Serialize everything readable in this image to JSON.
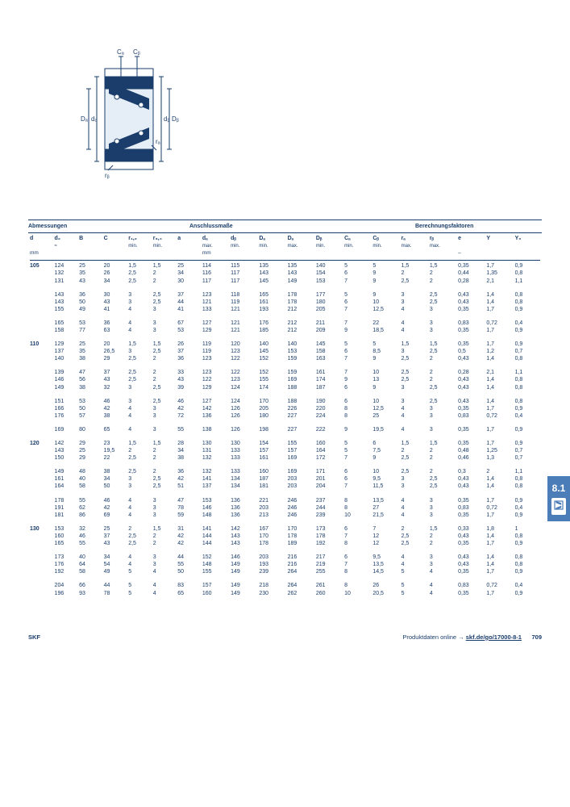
{
  "section_headers": {
    "abm": "Abmessungen",
    "ans": "Anschlussmaße",
    "ber": "Berechnungsfaktoren"
  },
  "col_headers": [
    "d",
    "d₂\n≈",
    "B",
    "C",
    "r₁,₂\nmin.",
    "r₃,₄\nmin.",
    "a",
    "dₐ\nmax.",
    "dᵦ\nmin.",
    "Dₐ\nmin.",
    "Dₐ\nmax.",
    "Dᵦ\nmin.",
    "Cₐ\nmin.",
    "Cᵦ\nmin.",
    "rₐ\nmax.",
    "rᵦ\nmax.",
    "e",
    "Y",
    "Y₀"
  ],
  "units": {
    "mm1": "mm",
    "mm2": "mm",
    "dash": "–"
  },
  "side_tab": "8.1",
  "footer": {
    "brand": "SKF",
    "link_label": "Produktdaten online → ",
    "link": "skf.de/go/17000-8-1",
    "page": "709"
  },
  "diagram": {
    "width": 130,
    "height": 170,
    "labels": {
      "Ca": "Cₐ",
      "Cb": "Cᵦ",
      "Da": "Dₐ",
      "da": "dₐ",
      "Db": "Dᵦ",
      "db": "dᵦ",
      "ra": "rₐ",
      "rb": "rᵦ"
    },
    "stroke": "#1a3d6b",
    "fill_dark": "#1a3d6b",
    "fill_light": "#a8c4e0"
  },
  "rows": [
    {
      "d": "105",
      "cells": [
        [
          "124",
          "25",
          "20",
          "1,5",
          "1,5",
          "25",
          "114",
          "115",
          "135",
          "135",
          "140",
          "5",
          "5",
          "1,5",
          "1,5",
          "0,35",
          "1,7",
          "0,9"
        ],
        [
          "132",
          "35",
          "26",
          "2,5",
          "2",
          "34",
          "116",
          "117",
          "143",
          "143",
          "154",
          "6",
          "9",
          "2",
          "2",
          "0,44",
          "1,35",
          "0,8"
        ],
        [
          "131",
          "43",
          "34",
          "2,5",
          "2",
          "30",
          "117",
          "117",
          "145",
          "149",
          "153",
          "7",
          "9",
          "2,5",
          "2",
          "0,28",
          "2,1",
          "1,1"
        ]
      ]
    },
    {
      "cells": [
        [
          "143",
          "36",
          "30",
          "3",
          "2,5",
          "37",
          "123",
          "118",
          "165",
          "178",
          "177",
          "5",
          "9",
          "3",
          "2,5",
          "0,43",
          "1,4",
          "0,8"
        ],
        [
          "143",
          "50",
          "43",
          "3",
          "2,5",
          "44",
          "121",
          "119",
          "161",
          "178",
          "180",
          "6",
          "10",
          "3",
          "2,5",
          "0,43",
          "1,4",
          "0,8"
        ],
        [
          "155",
          "49",
          "41",
          "4",
          "3",
          "41",
          "133",
          "121",
          "193",
          "212",
          "205",
          "7",
          "12,5",
          "4",
          "3",
          "0,35",
          "1,7",
          "0,9"
        ]
      ]
    },
    {
      "cells": [
        [
          "165",
          "53",
          "36",
          "4",
          "3",
          "67",
          "127",
          "121",
          "176",
          "212",
          "211",
          "7",
          "22",
          "4",
          "3",
          "0,83",
          "0,72",
          "0,4"
        ],
        [
          "158",
          "77",
          "63",
          "4",
          "3",
          "53",
          "129",
          "121",
          "185",
          "212",
          "209",
          "9",
          "18,5",
          "4",
          "3",
          "0,35",
          "1,7",
          "0,9"
        ]
      ]
    },
    {
      "d": "110",
      "cells": [
        [
          "129",
          "25",
          "20",
          "1,5",
          "1,5",
          "26",
          "119",
          "120",
          "140",
          "140",
          "145",
          "5",
          "5",
          "1,5",
          "1,5",
          "0,35",
          "1,7",
          "0,9"
        ],
        [
          "137",
          "35",
          "26,5",
          "3",
          "2,5",
          "37",
          "119",
          "123",
          "145",
          "153",
          "158",
          "6",
          "8,5",
          "3",
          "2,5",
          "0,5",
          "1,2",
          "0,7"
        ],
        [
          "140",
          "38",
          "29",
          "2,5",
          "2",
          "36",
          "123",
          "122",
          "152",
          "159",
          "163",
          "7",
          "9",
          "2,5",
          "2",
          "0,43",
          "1,4",
          "0,8"
        ]
      ]
    },
    {
      "cells": [
        [
          "139",
          "47",
          "37",
          "2,5",
          "2",
          "33",
          "123",
          "122",
          "152",
          "159",
          "161",
          "7",
          "10",
          "2,5",
          "2",
          "0,28",
          "2,1",
          "1,1"
        ],
        [
          "146",
          "56",
          "43",
          "2,5",
          "2",
          "43",
          "122",
          "123",
          "155",
          "169",
          "174",
          "9",
          "13",
          "2,5",
          "2",
          "0,43",
          "1,4",
          "0,8"
        ],
        [
          "149",
          "38",
          "32",
          "3",
          "2,5",
          "39",
          "129",
          "124",
          "174",
          "188",
          "187",
          "6",
          "9",
          "3",
          "2,5",
          "0,43",
          "1,4",
          "0,8"
        ]
      ]
    },
    {
      "cells": [
        [
          "151",
          "53",
          "46",
          "3",
          "2,5",
          "46",
          "127",
          "124",
          "170",
          "188",
          "190",
          "6",
          "10",
          "3",
          "2,5",
          "0,43",
          "1,4",
          "0,8"
        ],
        [
          "166",
          "50",
          "42",
          "4",
          "3",
          "42",
          "142",
          "126",
          "205",
          "226",
          "220",
          "8",
          "12,5",
          "4",
          "3",
          "0,35",
          "1,7",
          "0,9"
        ],
        [
          "176",
          "57",
          "38",
          "4",
          "3",
          "72",
          "136",
          "126",
          "180",
          "227",
          "224",
          "8",
          "25",
          "4",
          "3",
          "0,83",
          "0,72",
          "0,4"
        ]
      ]
    },
    {
      "cells": [
        [
          "169",
          "80",
          "65",
          "4",
          "3",
          "55",
          "138",
          "126",
          "198",
          "227",
          "222",
          "9",
          "19,5",
          "4",
          "3",
          "0,35",
          "1,7",
          "0,9"
        ]
      ]
    },
    {
      "d": "120",
      "cells": [
        [
          "142",
          "29",
          "23",
          "1,5",
          "1,5",
          "28",
          "130",
          "130",
          "154",
          "155",
          "160",
          "5",
          "6",
          "1,5",
          "1,5",
          "0,35",
          "1,7",
          "0,9"
        ],
        [
          "143",
          "25",
          "19,5",
          "2",
          "2",
          "34",
          "131",
          "133",
          "157",
          "157",
          "164",
          "5",
          "7,5",
          "2",
          "2",
          "0,48",
          "1,25",
          "0,7"
        ],
        [
          "150",
          "29",
          "22",
          "2,5",
          "2",
          "38",
          "132",
          "133",
          "161",
          "169",
          "172",
          "7",
          "9",
          "2,5",
          "2",
          "0,46",
          "1,3",
          "0,7"
        ]
      ]
    },
    {
      "cells": [
        [
          "149",
          "48",
          "38",
          "2,5",
          "2",
          "36",
          "132",
          "133",
          "160",
          "169",
          "171",
          "6",
          "10",
          "2,5",
          "2",
          "0,3",
          "2",
          "1,1"
        ],
        [
          "161",
          "40",
          "34",
          "3",
          "2,5",
          "42",
          "141",
          "134",
          "187",
          "203",
          "201",
          "6",
          "9,5",
          "3",
          "2,5",
          "0,43",
          "1,4",
          "0,8"
        ],
        [
          "164",
          "58",
          "50",
          "3",
          "2,5",
          "51",
          "137",
          "134",
          "181",
          "203",
          "204",
          "7",
          "11,5",
          "3",
          "2,5",
          "0,43",
          "1,4",
          "0,8"
        ]
      ]
    },
    {
      "cells": [
        [
          "178",
          "55",
          "46",
          "4",
          "3",
          "47",
          "153",
          "136",
          "221",
          "246",
          "237",
          "8",
          "13,5",
          "4",
          "3",
          "0,35",
          "1,7",
          "0,9"
        ],
        [
          "191",
          "62",
          "42",
          "4",
          "3",
          "78",
          "146",
          "136",
          "203",
          "246",
          "244",
          "8",
          "27",
          "4",
          "3",
          "0,83",
          "0,72",
          "0,4"
        ],
        [
          "181",
          "86",
          "69",
          "4",
          "3",
          "59",
          "148",
          "136",
          "213",
          "246",
          "239",
          "10",
          "21,5",
          "4",
          "3",
          "0,35",
          "1,7",
          "0,9"
        ]
      ]
    },
    {
      "d": "130",
      "cells": [
        [
          "153",
          "32",
          "25",
          "2",
          "1,5",
          "31",
          "141",
          "142",
          "167",
          "170",
          "173",
          "6",
          "7",
          "2",
          "1,5",
          "0,33",
          "1,8",
          "1"
        ],
        [
          "160",
          "46",
          "37",
          "2,5",
          "2",
          "42",
          "144",
          "143",
          "170",
          "178",
          "178",
          "7",
          "12",
          "2,5",
          "2",
          "0,43",
          "1,4",
          "0,8"
        ],
        [
          "165",
          "55",
          "43",
          "2,5",
          "2",
          "42",
          "144",
          "143",
          "178",
          "189",
          "192",
          "8",
          "12",
          "2,5",
          "2",
          "0,35",
          "1,7",
          "0,9"
        ]
      ]
    },
    {
      "cells": [
        [
          "173",
          "40",
          "34",
          "4",
          "3",
          "44",
          "152",
          "146",
          "203",
          "216",
          "217",
          "6",
          "9,5",
          "4",
          "3",
          "0,43",
          "1,4",
          "0,8"
        ],
        [
          "176",
          "64",
          "54",
          "4",
          "3",
          "55",
          "148",
          "149",
          "193",
          "216",
          "219",
          "7",
          "13,5",
          "4",
          "3",
          "0,43",
          "1,4",
          "0,8"
        ],
        [
          "192",
          "58",
          "49",
          "5",
          "4",
          "50",
          "155",
          "149",
          "239",
          "264",
          "255",
          "8",
          "14,5",
          "5",
          "4",
          "0,35",
          "1,7",
          "0,9"
        ]
      ]
    },
    {
      "cells": [
        [
          "204",
          "66",
          "44",
          "5",
          "4",
          "83",
          "157",
          "149",
          "218",
          "264",
          "261",
          "8",
          "26",
          "5",
          "4",
          "0,83",
          "0,72",
          "0,4"
        ],
        [
          "196",
          "93",
          "78",
          "5",
          "4",
          "65",
          "160",
          "149",
          "230",
          "262",
          "260",
          "10",
          "20,5",
          "5",
          "4",
          "0,35",
          "1,7",
          "0,9"
        ]
      ]
    }
  ]
}
